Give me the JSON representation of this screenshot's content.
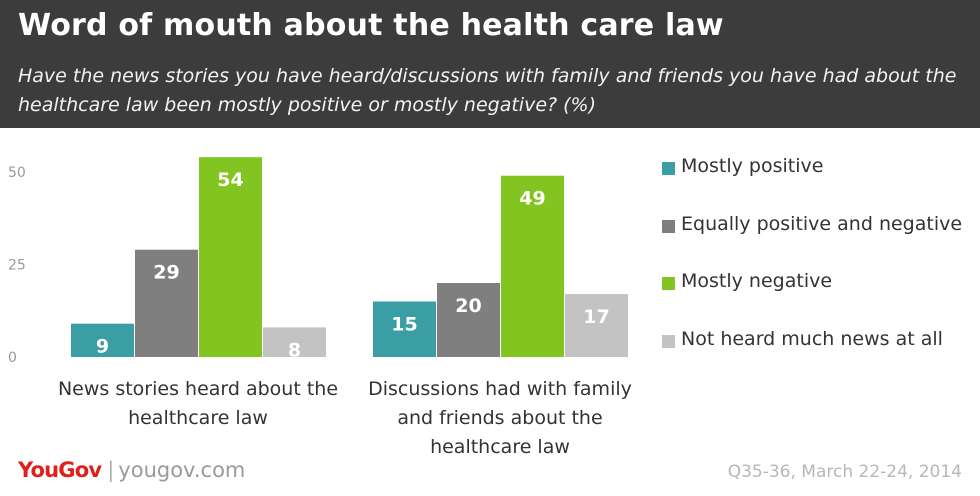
{
  "header": {
    "title": "Word of mouth about the health care law",
    "subtitle": "Have the news stories you have heard/discussions with family and friends you have had about the healthcare law been mostly positive or mostly negative? (%)"
  },
  "chart_data": {
    "type": "bar",
    "title": "Word of mouth about the health care law",
    "subtitle": "Have the news stories you have heard/discussions with family and friends you have had about the healthcare law been mostly positive or mostly negative? (%)",
    "categories": [
      "News stories heard about the healthcare law",
      "Discussions had with family and friends about the healthcare law"
    ],
    "series": [
      {
        "name": "Mostly positive",
        "color": "#3a9ea4",
        "values": [
          9,
          15
        ]
      },
      {
        "name": "Equally positive and negative",
        "color": "#7f7f7f",
        "values": [
          29,
          20
        ]
      },
      {
        "name": "Mostly negative",
        "color": "#83c520",
        "values": [
          54,
          49
        ]
      },
      {
        "name": "Not heard much news at all",
        "color": "#c3c3c3",
        "values": [
          8,
          17
        ]
      }
    ],
    "yticks": [
      0,
      25,
      50
    ],
    "ylim": [
      0,
      55
    ],
    "grid": false,
    "legend": "right",
    "data_labels": true
  },
  "footer": {
    "brand": "YouGov",
    "separator": "|",
    "url": "yougov.com",
    "source": "Q35-36, March 22-24, 2014"
  }
}
